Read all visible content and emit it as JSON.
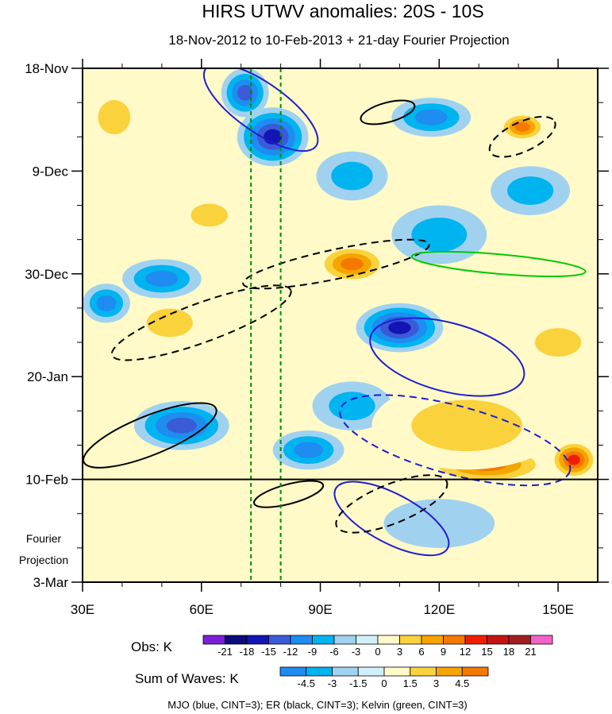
{
  "chart_data": {
    "type": "heatmap",
    "title": "HIRS UTWV anomalies: 20S - 10S",
    "subtitle": "18-Nov-2012 to 10-Feb-2013 + 21-day Fourier Projection",
    "x_axis": {
      "range": [
        30,
        160
      ],
      "ticks": [
        {
          "value": 30,
          "label": "30E"
        },
        {
          "value": 60,
          "label": "60E"
        },
        {
          "value": 90,
          "label": "90E"
        },
        {
          "value": 120,
          "label": "120E"
        },
        {
          "value": 150,
          "label": "150E"
        }
      ]
    },
    "y_axis": {
      "range_days": [
        0,
        105
      ],
      "start": "18-Nov-2012",
      "ticks": [
        {
          "day": 0,
          "label": "18-Nov"
        },
        {
          "day": 21,
          "label": "9-Dec"
        },
        {
          "day": 42,
          "label": "30-Dec"
        },
        {
          "day": 63,
          "label": "20-Jan"
        },
        {
          "day": 84,
          "label": "10-Feb"
        },
        {
          "day": 105,
          "label": "3-Mar"
        }
      ]
    },
    "projection_label": [
      "Fourier",
      "Projection"
    ],
    "reference_lines": {
      "observation_end_day": 84,
      "dashed_green_lon": [
        72.5,
        80
      ]
    },
    "obs_colorbar": {
      "label": "Obs: K",
      "levels": [
        "-21",
        "-18",
        "-15",
        "-12",
        "-9",
        "-6",
        "-3",
        "0",
        "3",
        "6",
        "9",
        "12",
        "15",
        "18",
        "21"
      ],
      "colors": [
        "#7a1fd6",
        "#0b0b7a",
        "#1414b4",
        "#3a5ad8",
        "#1e8cf0",
        "#00b4f0",
        "#a0d2f0",
        "#d2f0fa",
        "#fffac8",
        "#fad23c",
        "#f5a500",
        "#f57800",
        "#f01e00",
        "#c31414",
        "#a01e1e",
        "#f064c8"
      ]
    },
    "waves_colorbar": {
      "label": "Sum of Waves: K",
      "levels": [
        "-4.5",
        "-3",
        "-1.5",
        "0",
        "1.5",
        "3",
        "4.5"
      ],
      "colors": [
        "#1e8cf0",
        "#00b4f0",
        "#a0d2f0",
        "#d2f0fa",
        "#fffac8",
        "#fad23c",
        "#f5a500",
        "#f57800"
      ]
    },
    "footer": "MJO (blue, CINT=3); ER (black, CINT=3); Kelvin (green, CINT=3)",
    "contour_colors": {
      "mjo": "#1e1ed2",
      "er": "#000000",
      "kelvin": "#00c800"
    },
    "anomaly_blobs": [
      {
        "lon": 78,
        "day": 14,
        "rlon": 9,
        "rday": 6,
        "level": -15
      },
      {
        "lon": 71,
        "day": 5,
        "rlon": 6,
        "rday": 5,
        "level": -12
      },
      {
        "lon": 110,
        "day": 53,
        "rlon": 11,
        "rday": 5,
        "level": -15
      },
      {
        "lon": 118,
        "day": 10,
        "rlon": 10,
        "rday": 4,
        "level": -9
      },
      {
        "lon": 55,
        "day": 73,
        "rlon": 12,
        "rday": 5,
        "level": -12
      },
      {
        "lon": 50,
        "day": 43,
        "rlon": 10,
        "rday": 4,
        "level": -9
      },
      {
        "lon": 87,
        "day": 78,
        "rlon": 9,
        "rday": 4,
        "level": -9
      },
      {
        "lon": 36,
        "day": 48,
        "rlon": 6,
        "rday": 4,
        "level": -9
      },
      {
        "lon": 143,
        "day": 25,
        "rlon": 10,
        "rday": 5,
        "level": -6
      },
      {
        "lon": 98,
        "day": 22,
        "rlon": 9,
        "rday": 5,
        "level": -6
      },
      {
        "lon": 120,
        "day": 34,
        "rlon": 12,
        "rday": 6,
        "level": -6
      },
      {
        "lon": 98,
        "day": 69,
        "rlon": 10,
        "rday": 5,
        "level": -6
      },
      {
        "lon": 141,
        "day": 12,
        "rlon": 6,
        "rday": 3,
        "level": 12
      },
      {
        "lon": 98,
        "day": 40,
        "rlon": 9,
        "rday": 4,
        "level": 12
      },
      {
        "lon": 132,
        "day": 81,
        "rlon": 16,
        "rday": 4,
        "level": 12
      },
      {
        "lon": 154,
        "day": 80,
        "rlon": 6,
        "rday": 4,
        "level": 15
      },
      {
        "lon": 127,
        "day": 73,
        "rlon": 24,
        "rday": 9,
        "level": 6
      },
      {
        "lon": 52,
        "day": 52,
        "rlon": 10,
        "rday": 5,
        "level": 6
      },
      {
        "lon": 38,
        "day": 10,
        "rlon": 7,
        "rday": 6,
        "level": 6
      },
      {
        "lon": 150,
        "day": 56,
        "rlon": 10,
        "rday": 5,
        "level": 6
      },
      {
        "lon": 62,
        "day": 30,
        "rlon": 8,
        "rday": 4,
        "level": 6
      },
      {
        "lon": 96,
        "day": 97,
        "rlon": 6,
        "rday": 4,
        "level": 3
      },
      {
        "lon": 120,
        "day": 93,
        "rlon": 14,
        "rday": 5,
        "level": -3
      }
    ],
    "wave_contours": [
      {
        "wave": "mjo",
        "sign": "pos",
        "lon": 75,
        "day": 8,
        "rlon": 17,
        "rday": 5,
        "angle": 35
      },
      {
        "wave": "mjo",
        "sign": "pos",
        "lon": 122,
        "day": 59,
        "rlon": 20,
        "rday": 7,
        "angle": 15
      },
      {
        "wave": "mjo",
        "sign": "pos",
        "lon": 108,
        "day": 92,
        "rlon": 16,
        "rday": 5,
        "angle": 28
      },
      {
        "wave": "mjo",
        "sign": "neg",
        "lon": 124,
        "day": 76,
        "rlon": 30,
        "rday": 7,
        "angle": 15
      },
      {
        "wave": "er",
        "sign": "neg",
        "lon": 60,
        "day": 52,
        "rlon": 24,
        "rday": 4,
        "angle": -20
      },
      {
        "wave": "er",
        "sign": "neg",
        "lon": 94,
        "day": 40,
        "rlon": 24,
        "rday": 3,
        "angle": -12
      },
      {
        "wave": "er",
        "sign": "pos",
        "lon": 47,
        "day": 75,
        "rlon": 18,
        "rday": 4,
        "angle": -22
      },
      {
        "wave": "er",
        "sign": "pos",
        "lon": 107,
        "day": 9,
        "rlon": 7,
        "rday": 2,
        "angle": -15
      },
      {
        "wave": "er",
        "sign": "neg",
        "lon": 141,
        "day": 14,
        "rlon": 9,
        "rday": 3,
        "angle": -25
      },
      {
        "wave": "er",
        "sign": "pos",
        "lon": 82,
        "day": 87,
        "rlon": 9,
        "rday": 2,
        "angle": -15
      },
      {
        "wave": "er",
        "sign": "neg",
        "lon": 108,
        "day": 89,
        "rlon": 15,
        "rday": 4,
        "angle": -22
      },
      {
        "wave": "kelvin",
        "sign": "pos",
        "lon": 135,
        "day": 40,
        "rlon": 22,
        "rday": 2,
        "angle": 5
      }
    ]
  }
}
